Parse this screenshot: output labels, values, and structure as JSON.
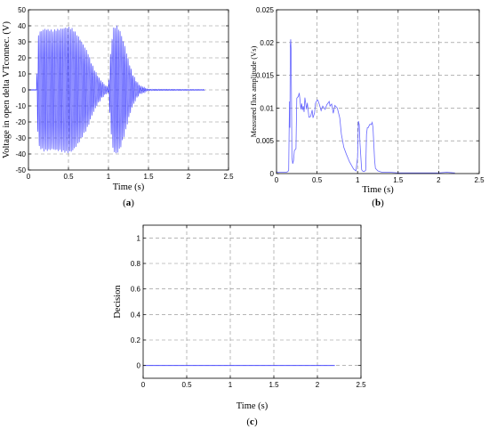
{
  "chart_data": [
    {
      "type": "line",
      "id": "a",
      "panel_label": "a",
      "xlabel": "Time (s)",
      "ylabel": "Voltage in open delta VTconnec. (V)",
      "xlim": [
        0,
        2.5
      ],
      "ylim": [
        -50,
        50
      ],
      "x_ticks": [
        0,
        0.5,
        1,
        1.5,
        2,
        2.5
      ],
      "y_ticks": [
        -50,
        -40,
        -30,
        -20,
        -10,
        0,
        10,
        20,
        30,
        40,
        50
      ],
      "grid": true,
      "series": [
        {
          "color": "#3333ff",
          "style": "oscillation",
          "frequency_hz": 50,
          "envelope": {
            "x": [
              0,
              0.1,
              0.12,
              0.14,
              0.2,
              0.3,
              0.4,
              0.5,
              0.55,
              0.6,
              0.65,
              0.7,
              0.75,
              0.8,
              0.85,
              0.9,
              0.95,
              1.0,
              1.03,
              1.06,
              1.1,
              1.15,
              1.2,
              1.25,
              1.3,
              1.35,
              1.4,
              1.5,
              2.2
            ],
            "y": [
              0,
              0,
              34,
              36,
              38,
              37,
              38,
              39,
              38,
              35,
              31,
              27,
              22,
              15,
              10,
              6,
              3,
              1,
              26,
              38,
              40,
              36,
              28,
              18,
              10,
              5,
              2,
              0.4,
              0.2
            ]
          }
        }
      ]
    },
    {
      "type": "line",
      "id": "b",
      "panel_label": "b",
      "xlabel": "Time (s)",
      "ylabel": "Measured flux amplitude (Vs)",
      "xlim": [
        0,
        2.5
      ],
      "ylim": [
        0,
        0.025
      ],
      "x_ticks": [
        0,
        0.5,
        1,
        1.5,
        2,
        2.5
      ],
      "y_ticks": [
        0,
        0.005,
        0.01,
        0.015,
        0.02,
        0.025
      ],
      "y_tick_labels": [
        "0",
        "0.005",
        "0.01",
        "0.015",
        "0.02",
        "0.025"
      ],
      "grid": true,
      "series": [
        {
          "color": "#6666ff",
          "x": [
            0,
            0.1,
            0.12,
            0.14,
            0.15,
            0.16,
            0.165,
            0.17,
            0.175,
            0.18,
            0.19,
            0.2,
            0.21,
            0.22,
            0.24,
            0.25,
            0.27,
            0.28,
            0.29,
            0.3,
            0.31,
            0.32,
            0.33,
            0.34,
            0.35,
            0.37,
            0.38,
            0.4,
            0.42,
            0.44,
            0.45,
            0.47,
            0.48,
            0.5,
            0.51,
            0.53,
            0.55,
            0.57,
            0.6,
            0.62,
            0.65,
            0.66,
            0.68,
            0.7,
            0.72,
            0.75,
            0.78,
            0.8,
            0.83,
            0.86,
            0.9,
            0.95,
            0.98,
            1.0,
            1.01,
            1.02,
            1.03,
            1.05,
            1.06,
            1.08,
            1.1,
            1.11,
            1.12,
            1.13,
            1.15,
            1.17,
            1.18,
            1.19,
            1.2,
            1.21,
            1.22,
            1.25,
            1.3,
            1.4,
            1.5,
            1.6,
            2.0,
            2.1,
            2.2
          ],
          "y": [
            0.0002,
            0.0002,
            0.0002,
            0.0003,
            0.0005,
            0.011,
            0.007,
            0.0195,
            0.0205,
            0.019,
            0.0025,
            0.0015,
            0.002,
            0.0035,
            0.0038,
            0.0115,
            0.0118,
            0.0123,
            0.0112,
            0.0098,
            0.0107,
            0.0097,
            0.0103,
            0.0094,
            0.0116,
            0.0098,
            0.0108,
            0.0086,
            0.0087,
            0.0097,
            0.0085,
            0.0093,
            0.0107,
            0.0112,
            0.0112,
            0.0105,
            0.0096,
            0.0103,
            0.0098,
            0.0105,
            0.011,
            0.0103,
            0.0106,
            0.0092,
            0.0104,
            0.01,
            0.0085,
            0.006,
            0.004,
            0.003,
            0.0018,
            0.0007,
            0.0004,
            0.0025,
            0.008,
            0.0075,
            0.0045,
            0.0006,
            0.0004,
            0.0003,
            0.0005,
            0.006,
            0.007,
            0.007,
            0.0075,
            0.0075,
            0.0078,
            0.007,
            0.0045,
            0.002,
            0.0008,
            0.0004,
            0.0002,
            0.0002,
            0.0001,
            0.0001,
            0.0001,
            0.0002,
            0.0001
          ]
        }
      ]
    },
    {
      "type": "line",
      "id": "c",
      "panel_label": "c",
      "xlabel": "Time (s)",
      "ylabel": "Decision",
      "xlim": [
        0,
        2.5
      ],
      "ylim": [
        -0.1,
        1.1
      ],
      "x_ticks": [
        0,
        0.5,
        1,
        1.5,
        2,
        2.5
      ],
      "y_ticks": [
        0,
        0.2,
        0.4,
        0.6,
        0.8,
        1
      ],
      "grid": true,
      "series": [
        {
          "color": "#3333ff",
          "x": [
            0,
            2.2
          ],
          "y": [
            0,
            0
          ]
        }
      ]
    }
  ]
}
